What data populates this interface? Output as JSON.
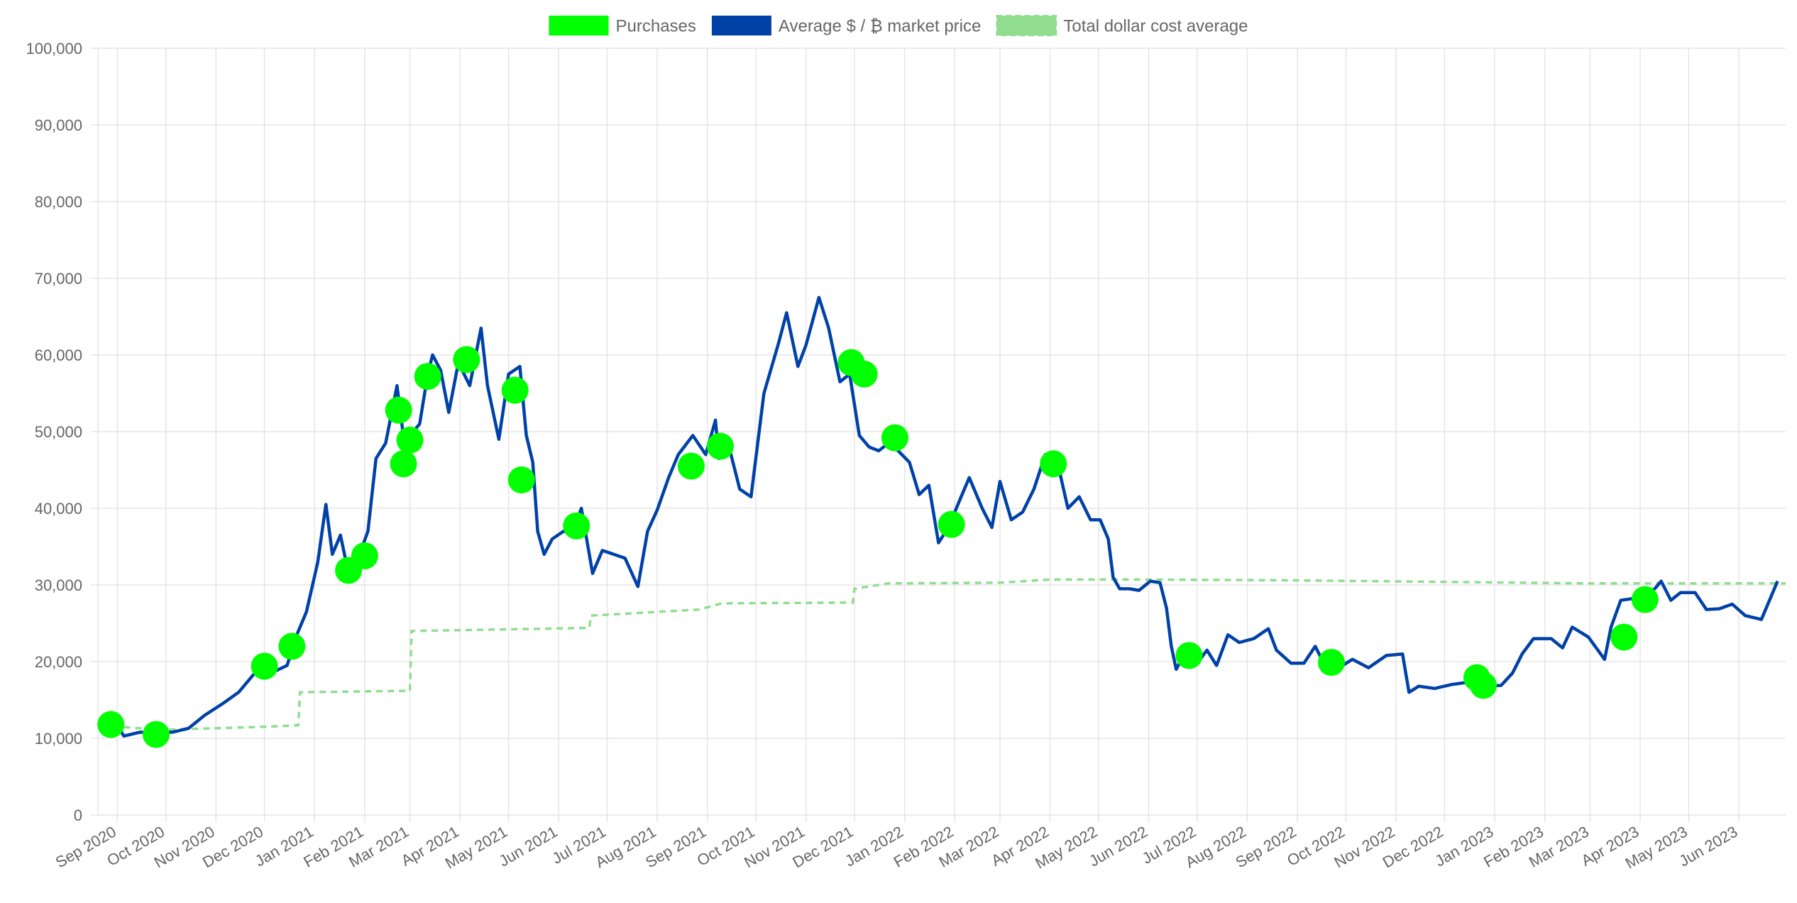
{
  "chart_data": {
    "type": "line",
    "colors": {
      "purchases": "#00ff00",
      "market": "#0041a8",
      "dca": "#90dd90",
      "grid": "#e5e5e5"
    },
    "legend": {
      "placement": "top-center",
      "items": [
        {
          "key": "purchases",
          "label": "Purchases"
        },
        {
          "key": "market",
          "label": "Average $ / ₿ market price"
        },
        {
          "key": "dca",
          "label": "Total dollar cost average"
        }
      ]
    },
    "y_axis": {
      "min": 0,
      "max": 100000,
      "ticks": [
        0,
        10000,
        20000,
        30000,
        40000,
        50000,
        60000,
        70000,
        80000,
        90000,
        100000
      ],
      "tick_labels": [
        "0",
        "10,000",
        "20,000",
        "30,000",
        "40,000",
        "50,000",
        "60,000",
        "70,000",
        "80,000",
        "90,000",
        "100,000"
      ]
    },
    "x_axis": {
      "min": "2020-08-20",
      "max": "2023-06-30",
      "ticks": [
        "2020-09-01",
        "2020-10-01",
        "2020-11-01",
        "2020-12-01",
        "2021-01-01",
        "2021-02-01",
        "2021-03-01",
        "2021-04-01",
        "2021-05-01",
        "2021-06-01",
        "2021-07-01",
        "2021-08-01",
        "2021-09-01",
        "2021-10-01",
        "2021-11-01",
        "2021-12-01",
        "2022-01-01",
        "2022-02-01",
        "2022-03-01",
        "2022-04-01",
        "2022-05-01",
        "2022-06-01",
        "2022-07-01",
        "2022-08-01",
        "2022-09-01",
        "2022-10-01",
        "2022-11-01",
        "2022-12-01",
        "2023-01-01",
        "2023-02-01",
        "2023-03-01",
        "2023-04-01",
        "2023-05-01",
        "2023-06-01"
      ],
      "tick_labels": [
        "Sep 2020",
        "Oct 2020",
        "Nov 2020",
        "Dec 2020",
        "Jan 2021",
        "Feb 2021",
        "Mar 2021",
        "Apr 2021",
        "May 2021",
        "Jun 2021",
        "Jul 2021",
        "Aug 2021",
        "Sep 2021",
        "Oct 2021",
        "Nov 2021",
        "Dec 2021",
        "Jan 2022",
        "Feb 2022",
        "Mar 2022",
        "Apr 2022",
        "May 2022",
        "Jun 2022",
        "Jul 2022",
        "Aug 2022",
        "Sep 2022",
        "Oct 2022",
        "Nov 2022",
        "Dec 2022",
        "Jan 2023",
        "Feb 2023",
        "Mar 2023",
        "Apr 2023",
        "May 2023",
        "Jun 2023"
      ]
    },
    "series": [
      {
        "key": "market",
        "name": "Average $ / ₿ market price",
        "type": "line",
        "points": [
          [
            "2020-08-22",
            11700
          ],
          [
            "2020-09-01",
            11800
          ],
          [
            "2020-09-05",
            10300
          ],
          [
            "2020-09-15",
            10800
          ],
          [
            "2020-09-25",
            10700
          ],
          [
            "2020-10-05",
            10800
          ],
          [
            "2020-10-15",
            11300
          ],
          [
            "2020-10-25",
            13000
          ],
          [
            "2020-11-05",
            14500
          ],
          [
            "2020-11-15",
            16000
          ],
          [
            "2020-11-25",
            18500
          ],
          [
            "2020-12-01",
            19200
          ],
          [
            "2020-12-08",
            18800
          ],
          [
            "2020-12-15",
            19500
          ],
          [
            "2020-12-21",
            23500
          ],
          [
            "2020-12-27",
            26500
          ],
          [
            "2021-01-03",
            33000
          ],
          [
            "2021-01-08",
            40500
          ],
          [
            "2021-01-12",
            34000
          ],
          [
            "2021-01-17",
            36500
          ],
          [
            "2021-01-22",
            31500
          ],
          [
            "2021-01-28",
            33500
          ],
          [
            "2021-02-03",
            37000
          ],
          [
            "2021-02-08",
            46500
          ],
          [
            "2021-02-14",
            48500
          ],
          [
            "2021-02-21",
            56000
          ],
          [
            "2021-02-27",
            46000
          ],
          [
            "2021-03-03",
            50000
          ],
          [
            "2021-03-07",
            51000
          ],
          [
            "2021-03-12",
            57500
          ],
          [
            "2021-03-15",
            60000
          ],
          [
            "2021-03-20",
            58000
          ],
          [
            "2021-03-25",
            52500
          ],
          [
            "2021-03-31",
            59000
          ],
          [
            "2021-04-07",
            56000
          ],
          [
            "2021-04-14",
            63500
          ],
          [
            "2021-04-18",
            56000
          ],
          [
            "2021-04-25",
            49000
          ],
          [
            "2021-05-01",
            57500
          ],
          [
            "2021-05-08",
            58500
          ],
          [
            "2021-05-12",
            49500
          ],
          [
            "2021-05-16",
            46000
          ],
          [
            "2021-05-19",
            37000
          ],
          [
            "2021-05-23",
            34000
          ],
          [
            "2021-05-28",
            36000
          ],
          [
            "2021-06-04",
            37000
          ],
          [
            "2021-06-10",
            37000
          ],
          [
            "2021-06-15",
            40000
          ],
          [
            "2021-06-22",
            31500
          ],
          [
            "2021-06-28",
            34500
          ],
          [
            "2021-07-05",
            34000
          ],
          [
            "2021-07-12",
            33500
          ],
          [
            "2021-07-20",
            29800
          ],
          [
            "2021-07-26",
            37000
          ],
          [
            "2021-08-01",
            39800
          ],
          [
            "2021-08-08",
            44000
          ],
          [
            "2021-08-14",
            47000
          ],
          [
            "2021-08-23",
            49500
          ],
          [
            "2021-08-31",
            47000
          ],
          [
            "2021-09-06",
            51500
          ],
          [
            "2021-09-08",
            46500
          ],
          [
            "2021-09-15",
            47500
          ],
          [
            "2021-09-21",
            42500
          ],
          [
            "2021-09-28",
            41500
          ],
          [
            "2021-10-06",
            55000
          ],
          [
            "2021-10-15",
            61500
          ],
          [
            "2021-10-20",
            65500
          ],
          [
            "2021-10-27",
            58500
          ],
          [
            "2021-11-01",
            61300
          ],
          [
            "2021-11-09",
            67500
          ],
          [
            "2021-11-15",
            63500
          ],
          [
            "2021-11-22",
            56500
          ],
          [
            "2021-11-28",
            57500
          ],
          [
            "2021-12-04",
            49500
          ],
          [
            "2021-12-10",
            48000
          ],
          [
            "2021-12-16",
            47500
          ],
          [
            "2021-12-22",
            48500
          ],
          [
            "2021-12-28",
            47500
          ],
          [
            "2022-01-04",
            46000
          ],
          [
            "2022-01-10",
            41800
          ],
          [
            "2022-01-16",
            43000
          ],
          [
            "2022-01-22",
            35500
          ],
          [
            "2022-01-28",
            37500
          ],
          [
            "2022-02-05",
            41500
          ],
          [
            "2022-02-10",
            44000
          ],
          [
            "2022-02-18",
            40000
          ],
          [
            "2022-02-24",
            37500
          ],
          [
            "2022-03-01",
            43500
          ],
          [
            "2022-03-08",
            38500
          ],
          [
            "2022-03-15",
            39500
          ],
          [
            "2022-03-22",
            42500
          ],
          [
            "2022-03-29",
            47000
          ],
          [
            "2022-04-05",
            46500
          ],
          [
            "2022-04-12",
            40000
          ],
          [
            "2022-04-19",
            41500
          ],
          [
            "2022-04-26",
            38500
          ],
          [
            "2022-05-02",
            38500
          ],
          [
            "2022-05-07",
            36000
          ],
          [
            "2022-05-10",
            31000
          ],
          [
            "2022-05-14",
            29500
          ],
          [
            "2022-05-20",
            29500
          ],
          [
            "2022-05-26",
            29300
          ],
          [
            "2022-06-02",
            30500
          ],
          [
            "2022-06-08",
            30300
          ],
          [
            "2022-06-12",
            27000
          ],
          [
            "2022-06-15",
            22000
          ],
          [
            "2022-06-18",
            19000
          ],
          [
            "2022-06-24",
            21300
          ],
          [
            "2022-06-30",
            19500
          ],
          [
            "2022-07-07",
            21500
          ],
          [
            "2022-07-13",
            19500
          ],
          [
            "2022-07-20",
            23500
          ],
          [
            "2022-07-27",
            22500
          ],
          [
            "2022-08-05",
            23000
          ],
          [
            "2022-08-14",
            24300
          ],
          [
            "2022-08-19",
            21500
          ],
          [
            "2022-08-28",
            19800
          ],
          [
            "2022-09-05",
            19800
          ],
          [
            "2022-09-12",
            22000
          ],
          [
            "2022-09-18",
            19500
          ],
          [
            "2022-09-25",
            19000
          ],
          [
            "2022-10-05",
            20300
          ],
          [
            "2022-10-15",
            19200
          ],
          [
            "2022-10-26",
            20800
          ],
          [
            "2022-11-05",
            21000
          ],
          [
            "2022-11-09",
            16000
          ],
          [
            "2022-11-15",
            16800
          ],
          [
            "2022-11-25",
            16500
          ],
          [
            "2022-12-05",
            17000
          ],
          [
            "2022-12-15",
            17300
          ],
          [
            "2022-12-25",
            16800
          ],
          [
            "2023-01-05",
            16900
          ],
          [
            "2023-01-12",
            18500
          ],
          [
            "2023-01-18",
            21000
          ],
          [
            "2023-01-25",
            23000
          ],
          [
            "2023-02-05",
            23000
          ],
          [
            "2023-02-12",
            21800
          ],
          [
            "2023-02-18",
            24500
          ],
          [
            "2023-02-28",
            23200
          ],
          [
            "2023-03-10",
            20300
          ],
          [
            "2023-03-14",
            24500
          ],
          [
            "2023-03-20",
            28000
          ],
          [
            "2023-03-30",
            28300
          ],
          [
            "2023-04-10",
            29500
          ],
          [
            "2023-04-14",
            30500
          ],
          [
            "2023-04-20",
            28000
          ],
          [
            "2023-04-26",
            29000
          ],
          [
            "2023-05-05",
            29000
          ],
          [
            "2023-05-12",
            26800
          ],
          [
            "2023-05-20",
            26900
          ],
          [
            "2023-05-28",
            27500
          ],
          [
            "2023-06-05",
            26000
          ],
          [
            "2023-06-15",
            25500
          ],
          [
            "2023-06-21",
            28500
          ],
          [
            "2023-06-25",
            30500
          ]
        ]
      },
      {
        "key": "dca",
        "name": "Total dollar cost average",
        "type": "step",
        "points": [
          [
            "2020-08-22",
            11700
          ],
          [
            "2020-09-27",
            11100
          ],
          [
            "2020-12-01",
            11500
          ],
          [
            "2020-12-22",
            11700
          ],
          [
            "2020-12-23",
            16000
          ],
          [
            "2021-03-01",
            16200
          ],
          [
            "2021-03-02",
            24000
          ],
          [
            "2021-06-20",
            24400
          ],
          [
            "2021-06-21",
            26000
          ],
          [
            "2021-08-27",
            26800
          ],
          [
            "2021-09-10",
            27600
          ],
          [
            "2021-11-30",
            27700
          ],
          [
            "2021-12-01",
            29500
          ],
          [
            "2021-12-22",
            30200
          ],
          [
            "2022-03-01",
            30300
          ],
          [
            "2022-04-01",
            30700
          ],
          [
            "2022-06-01",
            30700
          ],
          [
            "2022-09-01",
            30600
          ],
          [
            "2022-12-01",
            30400
          ],
          [
            "2023-03-01",
            30200
          ],
          [
            "2023-06-30",
            30200
          ]
        ]
      },
      {
        "key": "purchases",
        "name": "Purchases",
        "type": "scatter",
        "points": [
          [
            "2020-08-28",
            11800
          ],
          [
            "2020-09-25",
            10500
          ],
          [
            "2020-12-01",
            19400
          ],
          [
            "2020-12-18",
            22000
          ],
          [
            "2021-01-22",
            31900
          ],
          [
            "2021-02-01",
            33800
          ],
          [
            "2021-02-22",
            52800
          ],
          [
            "2021-02-25",
            45800
          ],
          [
            "2021-03-01",
            48900
          ],
          [
            "2021-03-12",
            57200
          ],
          [
            "2021-04-05",
            59400
          ],
          [
            "2021-05-05",
            55400
          ],
          [
            "2021-05-09",
            43700
          ],
          [
            "2021-06-12",
            37700
          ],
          [
            "2021-08-22",
            45500
          ],
          [
            "2021-09-09",
            48100
          ],
          [
            "2021-11-29",
            59000
          ],
          [
            "2021-12-07",
            57500
          ],
          [
            "2021-12-26",
            49200
          ],
          [
            "2022-01-30",
            37900
          ],
          [
            "2022-04-03",
            45800
          ],
          [
            "2022-06-26",
            20800
          ],
          [
            "2022-09-22",
            19900
          ],
          [
            "2022-12-21",
            17900
          ],
          [
            "2022-12-25",
            16900
          ],
          [
            "2023-03-22",
            23200
          ],
          [
            "2023-04-04",
            28100
          ]
        ]
      }
    ]
  }
}
